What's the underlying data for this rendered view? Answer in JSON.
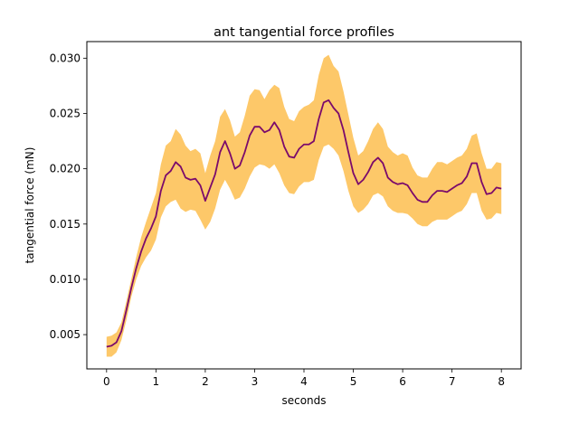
{
  "chart_data": {
    "type": "line",
    "title": "ant tangential force profiles",
    "xlabel": "seconds",
    "ylabel": "tangential force (mN)",
    "xlim": [
      -0.4,
      8.4
    ],
    "ylim": [
      0.0019,
      0.0315
    ],
    "xticks": [
      "0",
      "1",
      "2",
      "3",
      "4",
      "5",
      "6",
      "7",
      "8"
    ],
    "yticks": [
      "0.005",
      "0.010",
      "0.015",
      "0.020",
      "0.025",
      "0.030"
    ],
    "grid": false,
    "legend": "none",
    "colors": {
      "line": "#7b0a6b",
      "band": "#fdc869"
    },
    "series": [
      {
        "x": [
          0,
          0.1,
          0.2,
          0.3,
          0.4,
          0.5,
          0.6,
          0.7,
          0.8,
          0.9,
          1.0,
          1.1,
          1.2,
          1.3,
          1.4,
          1.5,
          1.6,
          1.7,
          1.8,
          1.9,
          2.0,
          2.1,
          2.2,
          2.3,
          2.4,
          2.5,
          2.6,
          2.7,
          2.8,
          2.9,
          3.0,
          3.1,
          3.2,
          3.3,
          3.4,
          3.5,
          3.6,
          3.7,
          3.8,
          3.9,
          4.0,
          4.1,
          4.2,
          4.3,
          4.4,
          4.5,
          4.6,
          4.7,
          4.8,
          4.9,
          5.0,
          5.1,
          5.2,
          5.3,
          5.4,
          5.5,
          5.6,
          5.7,
          5.8,
          5.9,
          6.0,
          6.1,
          6.2,
          6.3,
          6.4,
          6.5,
          6.6,
          6.7,
          6.8,
          6.9,
          7.0,
          7.1,
          7.2,
          7.3,
          7.4,
          7.5,
          7.6,
          7.7,
          7.8,
          7.9,
          8.0
        ],
        "mean": [
          0.0039,
          0.004,
          0.0043,
          0.0053,
          0.0072,
          0.0092,
          0.011,
          0.0125,
          0.0137,
          0.0146,
          0.0157,
          0.018,
          0.0194,
          0.0198,
          0.0206,
          0.0202,
          0.0192,
          0.019,
          0.0191,
          0.0185,
          0.0171,
          0.0183,
          0.0195,
          0.0215,
          0.0225,
          0.0214,
          0.02,
          0.0203,
          0.0215,
          0.023,
          0.0238,
          0.0238,
          0.0233,
          0.0235,
          0.0242,
          0.0235,
          0.022,
          0.0211,
          0.021,
          0.0218,
          0.0222,
          0.0222,
          0.0225,
          0.0245,
          0.026,
          0.0262,
          0.0255,
          0.025,
          0.0235,
          0.0215,
          0.0196,
          0.0186,
          0.019,
          0.0197,
          0.0206,
          0.021,
          0.0205,
          0.0192,
          0.0188,
          0.0186,
          0.0187,
          0.0185,
          0.0178,
          0.0172,
          0.017,
          0.017,
          0.0176,
          0.018,
          0.018,
          0.0179,
          0.0182,
          0.0185,
          0.0187,
          0.0193,
          0.0205,
          0.0205,
          0.0188,
          0.0177,
          0.0178,
          0.0183,
          0.0182
        ],
        "lower": [
          0.003,
          0.003,
          0.0034,
          0.0045,
          0.0063,
          0.0084,
          0.01,
          0.0112,
          0.012,
          0.0126,
          0.0136,
          0.0156,
          0.0166,
          0.017,
          0.0172,
          0.0164,
          0.0161,
          0.0163,
          0.0162,
          0.0154,
          0.0145,
          0.0152,
          0.0164,
          0.0181,
          0.019,
          0.0182,
          0.0172,
          0.0174,
          0.0182,
          0.0193,
          0.0201,
          0.0204,
          0.0203,
          0.02,
          0.0204,
          0.0196,
          0.0185,
          0.0178,
          0.0177,
          0.0184,
          0.0188,
          0.0188,
          0.019,
          0.0208,
          0.022,
          0.0222,
          0.0218,
          0.0212,
          0.0198,
          0.018,
          0.0166,
          0.016,
          0.0163,
          0.0168,
          0.0176,
          0.0178,
          0.0175,
          0.0166,
          0.0162,
          0.016,
          0.016,
          0.0159,
          0.0155,
          0.015,
          0.0148,
          0.0148,
          0.0152,
          0.0154,
          0.0154,
          0.0154,
          0.0157,
          0.016,
          0.0162,
          0.0168,
          0.0178,
          0.0178,
          0.0162,
          0.0154,
          0.0155,
          0.016,
          0.0159
        ],
        "upper": [
          0.0048,
          0.0049,
          0.0052,
          0.0061,
          0.008,
          0.01,
          0.012,
          0.0138,
          0.0152,
          0.0165,
          0.0178,
          0.0204,
          0.0221,
          0.0225,
          0.0236,
          0.0231,
          0.0221,
          0.0216,
          0.0218,
          0.0214,
          0.0196,
          0.0212,
          0.0225,
          0.0247,
          0.0254,
          0.0244,
          0.0229,
          0.0233,
          0.0248,
          0.0266,
          0.0272,
          0.0271,
          0.0263,
          0.0271,
          0.0276,
          0.0273,
          0.0256,
          0.0245,
          0.0243,
          0.0252,
          0.0256,
          0.0258,
          0.0262,
          0.0285,
          0.03,
          0.0303,
          0.0293,
          0.0288,
          0.027,
          0.0249,
          0.0228,
          0.0212,
          0.0216,
          0.0225,
          0.0236,
          0.0242,
          0.0236,
          0.022,
          0.0215,
          0.0212,
          0.0214,
          0.0212,
          0.0201,
          0.0194,
          0.0192,
          0.0192,
          0.02,
          0.0206,
          0.0206,
          0.0204,
          0.0207,
          0.021,
          0.0212,
          0.0218,
          0.023,
          0.0232,
          0.0214,
          0.02,
          0.02,
          0.0206,
          0.0205
        ]
      }
    ]
  }
}
